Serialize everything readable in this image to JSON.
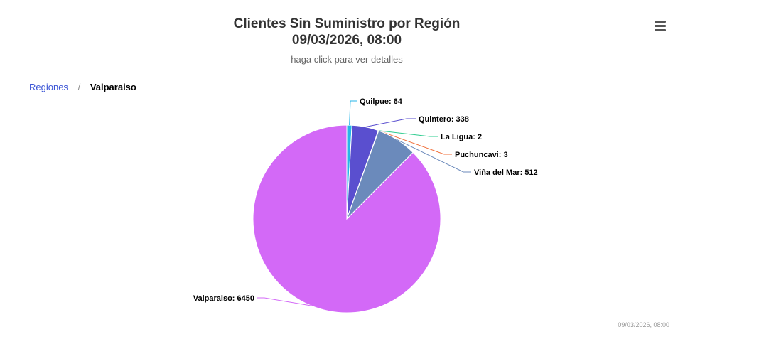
{
  "header": {
    "title_line1": "Clientes Sin Suministro por Región",
    "title_line2": "09/03/2026, 08:00",
    "subtitle": "haga click para ver detalles"
  },
  "menu": {
    "icon": "hamburger-menu-icon"
  },
  "breadcrumb": {
    "parent": "Regiones",
    "separator": "/",
    "current": "Valparaiso"
  },
  "credit": "09/03/2026, 08:00",
  "chart_data": {
    "type": "pie",
    "title": "Clientes Sin Suministro por Región",
    "subtitle": "haga click para ver detalles",
    "categories": [
      "Quilpue",
      "Quintero",
      "La Ligua",
      "Puchuncavi",
      "Viña del Mar",
      "Valparaiso"
    ],
    "values": [
      64,
      338,
      2,
      3,
      512,
      6450
    ],
    "labels": [
      "Quilpue: 64",
      "Quintero: 338",
      "La Ligua: 2",
      "Puchuncavi: 3",
      "Viña del Mar: 512",
      "Valparaiso: 6450"
    ],
    "colors": [
      "#26b5e8",
      "#5a4fcf",
      "#2ecc8f",
      "#f0703c",
      "#6b8abb",
      "#d369f7"
    ]
  }
}
